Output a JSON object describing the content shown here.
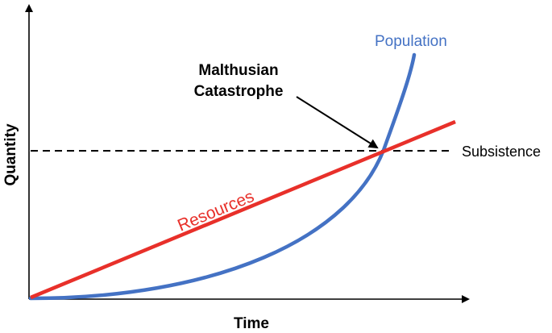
{
  "axes": {
    "x_label": "Time",
    "y_label": "Quantity"
  },
  "curves": {
    "population": {
      "label": "Population",
      "color": "#4472C4"
    },
    "resources": {
      "label": "Resources",
      "color": "#E8302A"
    },
    "subsistence": {
      "label": "Subsistence",
      "color": "#000000"
    }
  },
  "annotation": {
    "line1": "Malthusian",
    "line2": "Catastrophe"
  }
}
